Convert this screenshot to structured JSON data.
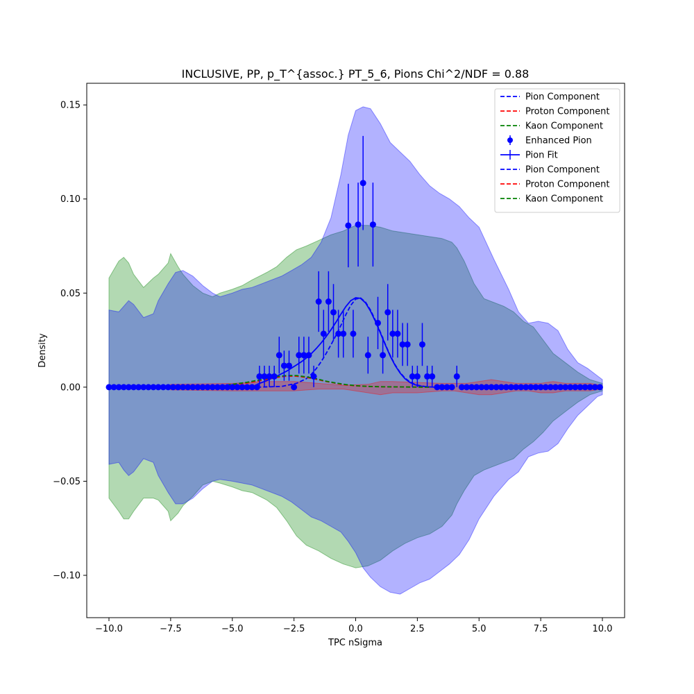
{
  "chart_data": {
    "type": "scatter",
    "title": "INCLUSIVE, PP, p_T^{assoc.} PT_5_6, Pions Chi^2/NDF = 0.88",
    "xlabel": "TPC nSigma",
    "ylabel": "Density",
    "xlim": [
      -10.9,
      10.9
    ],
    "ylim": [
      -0.1225,
      0.1615
    ],
    "x_ticks": [
      -10,
      -7.5,
      -5,
      -2.5,
      0,
      2.5,
      5,
      7.5,
      10
    ],
    "x_tick_labels": [
      "−10.0",
      "−7.5",
      "−5.0",
      "−2.5",
      "0.0",
      "2.5",
      "5.0",
      "7.5",
      "10.0"
    ],
    "y_ticks": [
      -0.1,
      -0.05,
      0.0,
      0.05,
      0.1,
      0.15
    ],
    "y_tick_labels": [
      "−0.10",
      "−0.05",
      "0.00",
      "0.05",
      "0.10",
      "0.15"
    ],
    "grid": false,
    "legend_position": "top-right",
    "legend": [
      {
        "label": "Pion Component",
        "style": "dashed",
        "color": "#0000ff"
      },
      {
        "label": "Proton Component",
        "style": "dashed",
        "color": "#ff0000"
      },
      {
        "label": "Kaon Component",
        "style": "dashed",
        "color": "#008000"
      },
      {
        "label": "Enhanced Pion",
        "style": "errorbar-marker",
        "color": "#0000ff"
      },
      {
        "label": "Pion Fit",
        "style": "errorbar-line",
        "color": "#0000ff"
      },
      {
        "label": "Pion Component",
        "style": "dashed",
        "color": "#0000ff"
      },
      {
        "label": "Proton Component",
        "style": "dashed",
        "color": "#ff0000"
      },
      {
        "label": "Kaon Component",
        "style": "dashed",
        "color": "#008000"
      }
    ],
    "bands": [
      {
        "name": "green-band",
        "color": "#008000",
        "opacity": 0.3,
        "x": [
          -10.0,
          -9.6,
          -9.4,
          -9.2,
          -9.0,
          -8.6,
          -8.2,
          -8.0,
          -7.6,
          -7.5,
          -7.2,
          -7.0,
          -6.6,
          -6.2,
          -5.8,
          -5.5,
          -5.0,
          -4.6,
          -4.2,
          -3.9,
          -3.6,
          -3.2,
          -2.8,
          -2.4,
          -2.0,
          -1.5,
          -1.0,
          -0.5,
          0.0,
          0.5,
          1.0,
          1.5,
          2.0,
          2.5,
          3.0,
          3.5,
          3.9,
          4.1,
          4.4,
          4.8,
          5.2,
          5.6,
          6.0,
          6.4,
          6.8,
          7.2,
          7.6,
          8.0,
          8.6,
          9.0,
          9.5,
          10.0
        ],
        "upper": [
          0.058,
          0.067,
          0.069,
          0.066,
          0.06,
          0.053,
          0.058,
          0.06,
          0.066,
          0.071,
          0.064,
          0.06,
          0.054,
          0.05,
          0.048,
          0.05,
          0.052,
          0.054,
          0.057,
          0.059,
          0.061,
          0.064,
          0.069,
          0.073,
          0.075,
          0.078,
          0.081,
          0.083,
          0.086,
          0.086,
          0.085,
          0.083,
          0.082,
          0.081,
          0.08,
          0.079,
          0.077,
          0.074,
          0.067,
          0.055,
          0.047,
          0.045,
          0.043,
          0.04,
          0.035,
          0.032,
          0.025,
          0.018,
          0.012,
          0.008,
          0.004,
          0.002
        ],
        "lower": [
          -0.059,
          -0.066,
          -0.07,
          -0.07,
          -0.066,
          -0.059,
          -0.059,
          -0.06,
          -0.066,
          -0.071,
          -0.067,
          -0.063,
          -0.058,
          -0.052,
          -0.05,
          -0.051,
          -0.053,
          -0.055,
          -0.056,
          -0.058,
          -0.06,
          -0.064,
          -0.071,
          -0.079,
          -0.084,
          -0.087,
          -0.091,
          -0.094,
          -0.096,
          -0.095,
          -0.092,
          -0.087,
          -0.083,
          -0.08,
          -0.078,
          -0.074,
          -0.068,
          -0.062,
          -0.055,
          -0.047,
          -0.044,
          -0.042,
          -0.04,
          -0.038,
          -0.033,
          -0.029,
          -0.024,
          -0.018,
          -0.012,
          -0.008,
          -0.004,
          -0.002
        ]
      },
      {
        "name": "blue-band",
        "color": "#0000ff",
        "opacity": 0.3,
        "x": [
          -10.0,
          -9.6,
          -9.4,
          -9.2,
          -9.0,
          -8.6,
          -8.2,
          -8.0,
          -7.6,
          -7.3,
          -7.0,
          -6.6,
          -6.2,
          -5.8,
          -5.5,
          -5.0,
          -4.6,
          -4.2,
          -3.8,
          -3.4,
          -3.0,
          -2.6,
          -2.2,
          -1.8,
          -1.4,
          -1.0,
          -0.6,
          -0.3,
          0.0,
          0.3,
          0.6,
          1.0,
          1.4,
          1.8,
          2.2,
          2.6,
          3.0,
          3.4,
          3.8,
          4.2,
          4.6,
          5.0,
          5.6,
          6.2,
          6.6,
          7.0,
          7.4,
          7.8,
          8.2,
          8.6,
          9.0,
          9.4,
          9.8,
          10.0
        ],
        "upper": [
          0.041,
          0.04,
          0.043,
          0.046,
          0.044,
          0.037,
          0.039,
          0.046,
          0.055,
          0.061,
          0.062,
          0.059,
          0.054,
          0.05,
          0.048,
          0.05,
          0.052,
          0.053,
          0.055,
          0.057,
          0.059,
          0.062,
          0.065,
          0.069,
          0.077,
          0.09,
          0.113,
          0.134,
          0.147,
          0.149,
          0.148,
          0.14,
          0.13,
          0.125,
          0.12,
          0.113,
          0.107,
          0.103,
          0.1,
          0.096,
          0.09,
          0.085,
          0.068,
          0.052,
          0.04,
          0.034,
          0.035,
          0.034,
          0.03,
          0.02,
          0.013,
          0.01,
          0.006,
          0.004
        ],
        "lower": [
          -0.041,
          -0.04,
          -0.044,
          -0.047,
          -0.045,
          -0.038,
          -0.04,
          -0.047,
          -0.056,
          -0.062,
          -0.062,
          -0.059,
          -0.054,
          -0.05,
          -0.049,
          -0.05,
          -0.051,
          -0.052,
          -0.054,
          -0.056,
          -0.058,
          -0.061,
          -0.065,
          -0.069,
          -0.071,
          -0.074,
          -0.077,
          -0.082,
          -0.088,
          -0.096,
          -0.101,
          -0.106,
          -0.109,
          -0.11,
          -0.107,
          -0.104,
          -0.102,
          -0.098,
          -0.094,
          -0.089,
          -0.081,
          -0.07,
          -0.058,
          -0.049,
          -0.045,
          -0.037,
          -0.035,
          -0.034,
          -0.03,
          -0.022,
          -0.015,
          -0.01,
          -0.005,
          -0.004
        ]
      },
      {
        "name": "red-band",
        "color": "#ff0000",
        "opacity": 0.25,
        "x": [
          -7.5,
          -5.0,
          -3.5,
          -2.5,
          -1.5,
          -0.5,
          0.5,
          1.0,
          1.5,
          2.5,
          3.5,
          4.0,
          4.5,
          5.0,
          5.5,
          6.0,
          6.5,
          7.0,
          7.5,
          8.0,
          8.5,
          9.0,
          9.5,
          10.0
        ],
        "upper": [
          0.0015,
          0.002,
          0.003,
          0.003,
          0.002,
          0.001,
          0.0015,
          0.003,
          0.003,
          0.0025,
          0.002,
          0.002,
          0.002,
          0.003,
          0.004,
          0.003,
          0.002,
          0.002,
          0.002,
          0.003,
          0.002,
          0.002,
          0.002,
          0.001
        ],
        "lower": [
          -0.0015,
          -0.002,
          -0.002,
          -0.002,
          -0.001,
          -0.001,
          -0.003,
          -0.004,
          -0.003,
          -0.003,
          -0.002,
          -0.002,
          -0.003,
          -0.004,
          -0.004,
          -0.003,
          -0.002,
          -0.002,
          -0.003,
          -0.003,
          -0.002,
          -0.002,
          -0.002,
          -0.001
        ]
      }
    ],
    "series": [
      {
        "name": "Enhanced Pion",
        "type": "errorbar",
        "color": "#0000ff",
        "x": [
          -10.0,
          -9.8,
          -9.6,
          -9.4,
          -9.2,
          -9.0,
          -8.8,
          -8.6,
          -8.4,
          -8.2,
          -8.0,
          -7.8,
          -7.6,
          -7.4,
          -7.2,
          -7.0,
          -6.8,
          -6.6,
          -6.4,
          -6.2,
          -6.0,
          -5.8,
          -5.6,
          -5.4,
          -5.2,
          -5.0,
          -4.8,
          -4.6,
          -4.4,
          -4.2,
          -4.0,
          -3.9,
          -3.7,
          -3.5,
          -3.3,
          -3.1,
          -2.9,
          -2.7,
          -2.5,
          -2.3,
          -2.1,
          -1.9,
          -1.7,
          -1.5,
          -1.3,
          -1.1,
          -0.9,
          -0.7,
          -0.5,
          -0.3,
          -0.1,
          0.1,
          0.3,
          0.5,
          0.7,
          0.9,
          1.1,
          1.3,
          1.5,
          1.7,
          1.9,
          2.1,
          2.3,
          2.5,
          2.7,
          2.9,
          3.1,
          3.3,
          3.5,
          3.7,
          3.9,
          4.1,
          4.3,
          4.5,
          4.7,
          4.9,
          5.1,
          5.3,
          5.5,
          5.7,
          5.9,
          6.1,
          6.3,
          6.5,
          6.7,
          6.9,
          7.1,
          7.3,
          7.5,
          7.7,
          7.9,
          8.1,
          8.3,
          8.5,
          8.7,
          8.9,
          9.1,
          9.3,
          9.5,
          9.7,
          9.9
        ],
        "y": [
          0,
          0,
          0,
          0,
          0,
          0,
          0,
          0,
          0,
          0,
          0,
          0,
          0,
          0,
          0,
          0,
          0,
          0,
          0,
          0,
          0,
          0,
          0,
          0,
          0,
          0,
          0,
          0,
          0,
          0,
          0,
          0.0057,
          0.0057,
          0.0057,
          0.0057,
          0.017,
          0.0114,
          0.0114,
          0,
          0.017,
          0.017,
          0.017,
          0.0057,
          0.0455,
          0.0284,
          0.0455,
          0.0398,
          0.0284,
          0.0284,
          0.0859,
          0.0284,
          0.0864,
          0.1085,
          0.017,
          0.0864,
          0.0341,
          0.017,
          0.0398,
          0.0284,
          0.0284,
          0.0227,
          0.0227,
          0.0057,
          0.0057,
          0.0227,
          0.0057,
          0.0057,
          0,
          0,
          0,
          0,
          0.0057,
          0,
          0,
          0,
          0,
          0,
          0,
          0,
          0,
          0,
          0,
          0,
          0,
          0,
          0,
          0,
          0,
          0,
          0,
          0,
          0,
          0,
          0,
          0,
          0,
          0,
          0,
          0,
          0,
          0
        ],
        "yerr": [
          0,
          0,
          0,
          0,
          0,
          0,
          0,
          0,
          0,
          0,
          0,
          0,
          0,
          0,
          0,
          0,
          0,
          0,
          0,
          0,
          0,
          0,
          0,
          0,
          0,
          0,
          0,
          0,
          0,
          0,
          0,
          0.0057,
          0.0057,
          0.0057,
          0.0057,
          0.0098,
          0.008,
          0.008,
          0,
          0.0098,
          0.0098,
          0.0098,
          0.0057,
          0.0161,
          0.0127,
          0.0161,
          0.015,
          0.0127,
          0.0127,
          0.0222,
          0.0127,
          0.0223,
          0.025,
          0.0098,
          0.0223,
          0.0139,
          0.0098,
          0.015,
          0.0127,
          0.0127,
          0.0114,
          0.0114,
          0.0057,
          0.0057,
          0.0114,
          0.0057,
          0.0057,
          0,
          0,
          0,
          0,
          0.0057,
          0,
          0,
          0,
          0,
          0,
          0,
          0,
          0,
          0,
          0,
          0,
          0,
          0,
          0,
          0,
          0,
          0,
          0,
          0,
          0,
          0,
          0,
          0,
          0,
          0,
          0,
          0,
          0,
          0
        ]
      },
      {
        "name": "Pion Fit",
        "type": "line",
        "color": "#0000ff",
        "x": [
          -4.0,
          -3.6,
          -3.2,
          -2.8,
          -2.4,
          -2.2,
          -2.0,
          -1.8,
          -1.6,
          -1.4,
          -1.2,
          -1.0,
          -0.8,
          -0.6,
          -0.4,
          -0.2,
          0.0,
          0.2,
          0.4,
          0.6,
          0.8,
          1.0,
          1.2,
          1.4,
          1.6,
          1.8,
          2.0,
          2.2,
          2.4,
          2.6,
          2.8,
          3.2
        ],
        "y": [
          0.0015,
          0.0035,
          0.0058,
          0.0085,
          0.0118,
          0.0135,
          0.0155,
          0.0178,
          0.0205,
          0.0235,
          0.0268,
          0.0305,
          0.0345,
          0.0388,
          0.0428,
          0.046,
          0.0475,
          0.0472,
          0.0448,
          0.0405,
          0.035,
          0.0288,
          0.0225,
          0.0165,
          0.0115,
          0.0075,
          0.0045,
          0.0025,
          0.0013,
          0.0006,
          0.0003,
          0.0
        ]
      },
      {
        "name": "Pion Component",
        "type": "dashed",
        "color": "#0000ff",
        "x": [
          -4.0,
          -3.0,
          -2.4,
          -2.0,
          -1.8,
          -1.6,
          -1.4,
          -1.2,
          -1.0,
          -0.8,
          -0.6,
          -0.4,
          -0.2,
          0.0,
          0.2,
          0.4,
          0.6,
          0.8,
          1.0,
          1.2,
          1.4,
          1.6,
          1.8,
          2.0,
          2.2,
          2.4,
          2.6,
          3.0
        ],
        "y": [
          0.0,
          0.0004,
          0.002,
          0.0045,
          0.0068,
          0.0098,
          0.0135,
          0.0178,
          0.0225,
          0.0275,
          0.0328,
          0.0385,
          0.0435,
          0.0468,
          0.0474,
          0.0452,
          0.041,
          0.0355,
          0.0292,
          0.0228,
          0.0168,
          0.0118,
          0.0078,
          0.0048,
          0.0028,
          0.0015,
          0.0008,
          0.0
        ]
      },
      {
        "name": "Proton Component",
        "type": "dashed",
        "color": "#ff0000",
        "x": [
          -7.0,
          -6.0,
          -5.0,
          -4.4,
          -4.0,
          -3.6,
          -3.2,
          -2.8,
          -2.4,
          -2.0,
          -1.6,
          -1.2,
          -0.8,
          -0.4,
          0.0,
          0.5,
          1.0,
          2.0,
          3.0
        ],
        "y": [
          0.0,
          0.0003,
          0.0012,
          0.0022,
          0.0032,
          0.0042,
          0.0052,
          0.0058,
          0.0058,
          0.0052,
          0.0042,
          0.003,
          0.002,
          0.0012,
          0.0007,
          0.0004,
          0.0002,
          0.0001,
          0.0
        ]
      },
      {
        "name": "Kaon Component",
        "type": "dashed",
        "color": "#008000",
        "x": [
          -7.0,
          -6.0,
          -5.0,
          -4.4,
          -4.0,
          -3.6,
          -3.2,
          -2.8,
          -2.4,
          -2.0,
          -1.6,
          -1.2,
          -0.8,
          -0.4,
          0.0,
          0.5,
          1.0,
          2.0,
          3.0
        ],
        "y": [
          0.0,
          0.0004,
          0.0015,
          0.0026,
          0.0036,
          0.0046,
          0.0056,
          0.0062,
          0.0062,
          0.0055,
          0.0045,
          0.0032,
          0.0022,
          0.0014,
          0.0008,
          0.0004,
          0.0002,
          0.0001,
          0.0
        ]
      }
    ]
  }
}
